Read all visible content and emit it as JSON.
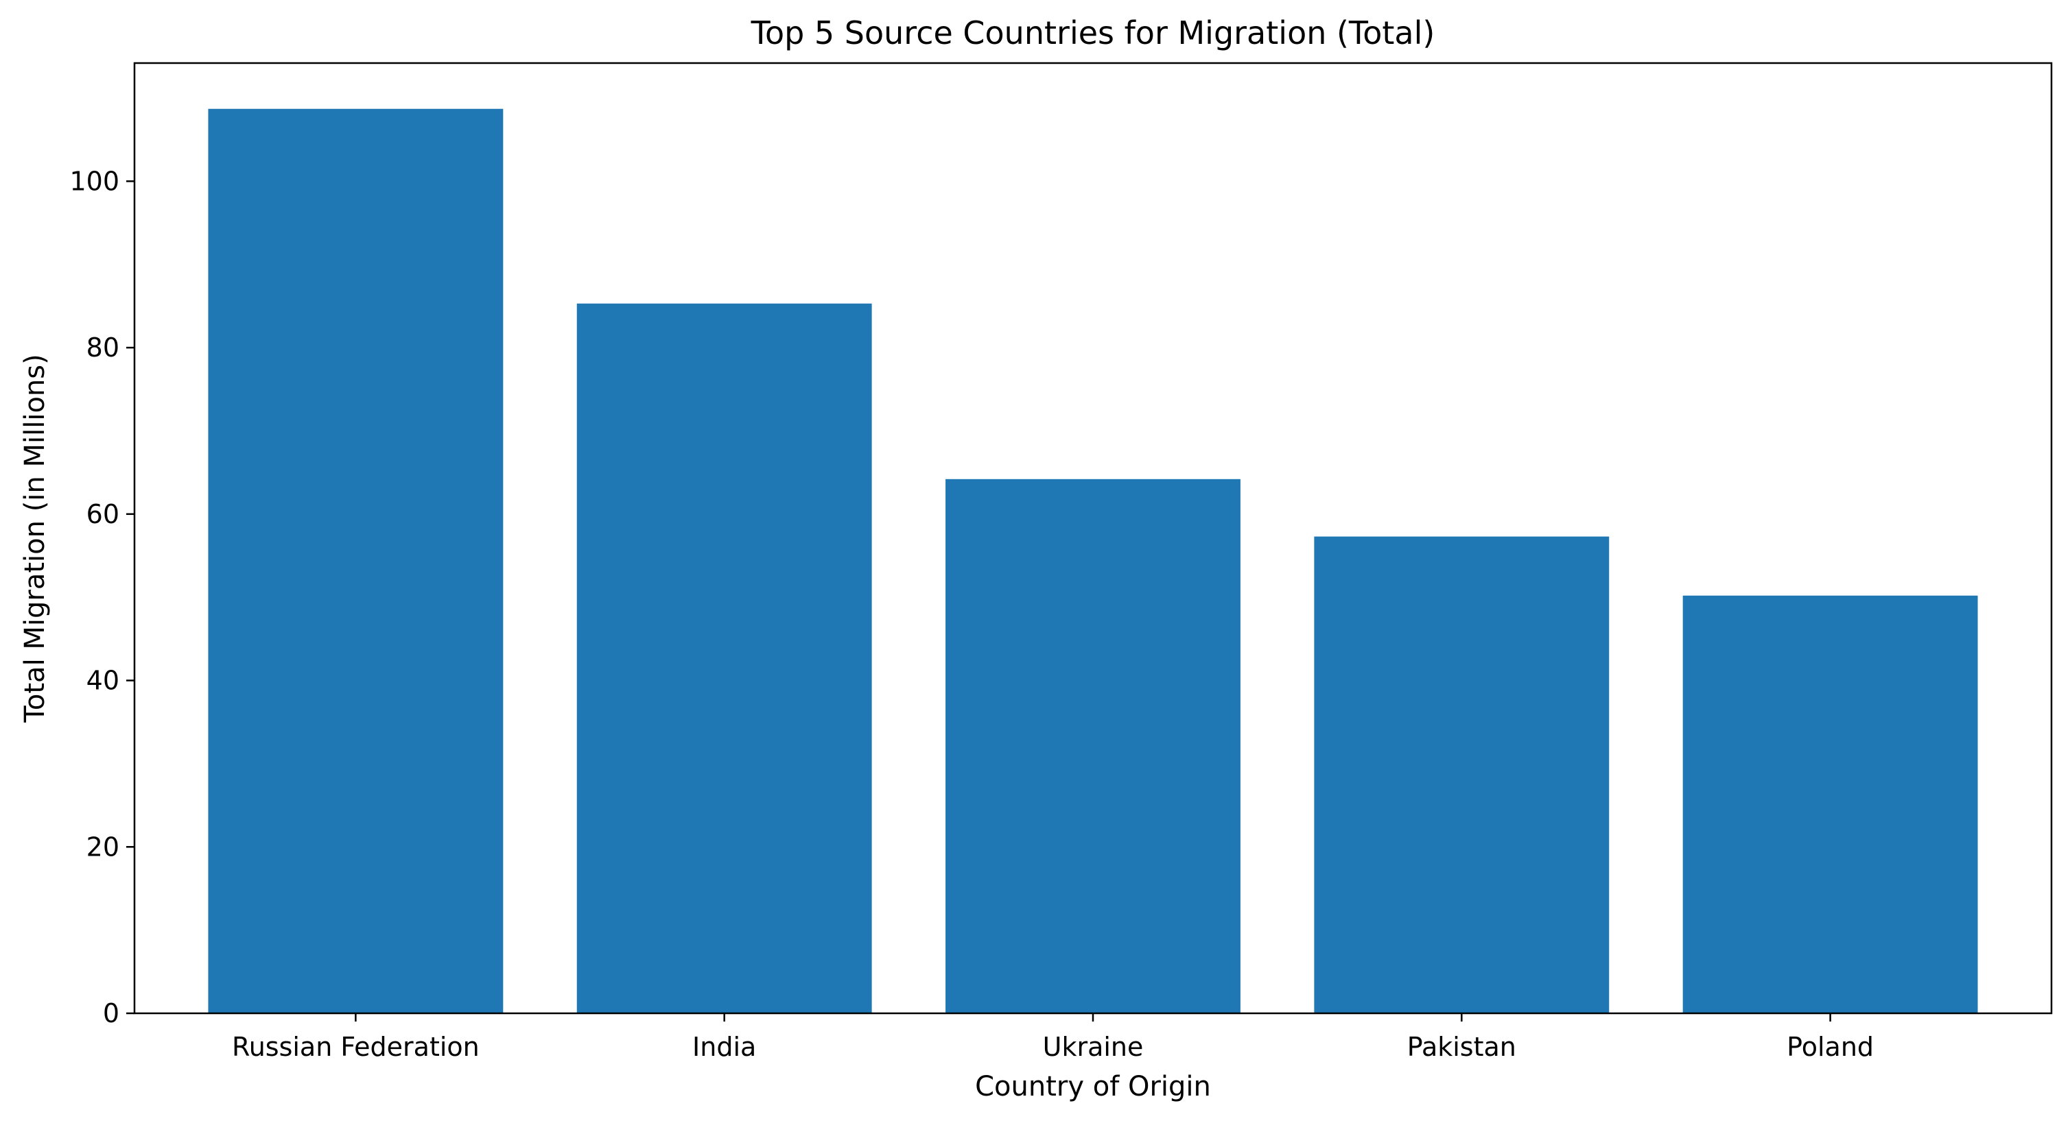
{
  "chart_data": {
    "type": "bar",
    "title": "Top 5 Source Countries for Migration (Total)",
    "xlabel": "Country of Origin",
    "ylabel": "Total Migration (in Millions)",
    "categories": [
      "Russian Federation",
      "India",
      "Ukraine",
      "Pakistan",
      "Poland"
    ],
    "values": [
      108.7,
      85.3,
      64.2,
      57.3,
      50.2
    ],
    "ylim": [
      0,
      114.2
    ],
    "yticks": [
      0,
      20,
      40,
      60,
      80,
      100
    ],
    "grid": false,
    "legend": "none",
    "bar_color": "#1f77b4"
  }
}
